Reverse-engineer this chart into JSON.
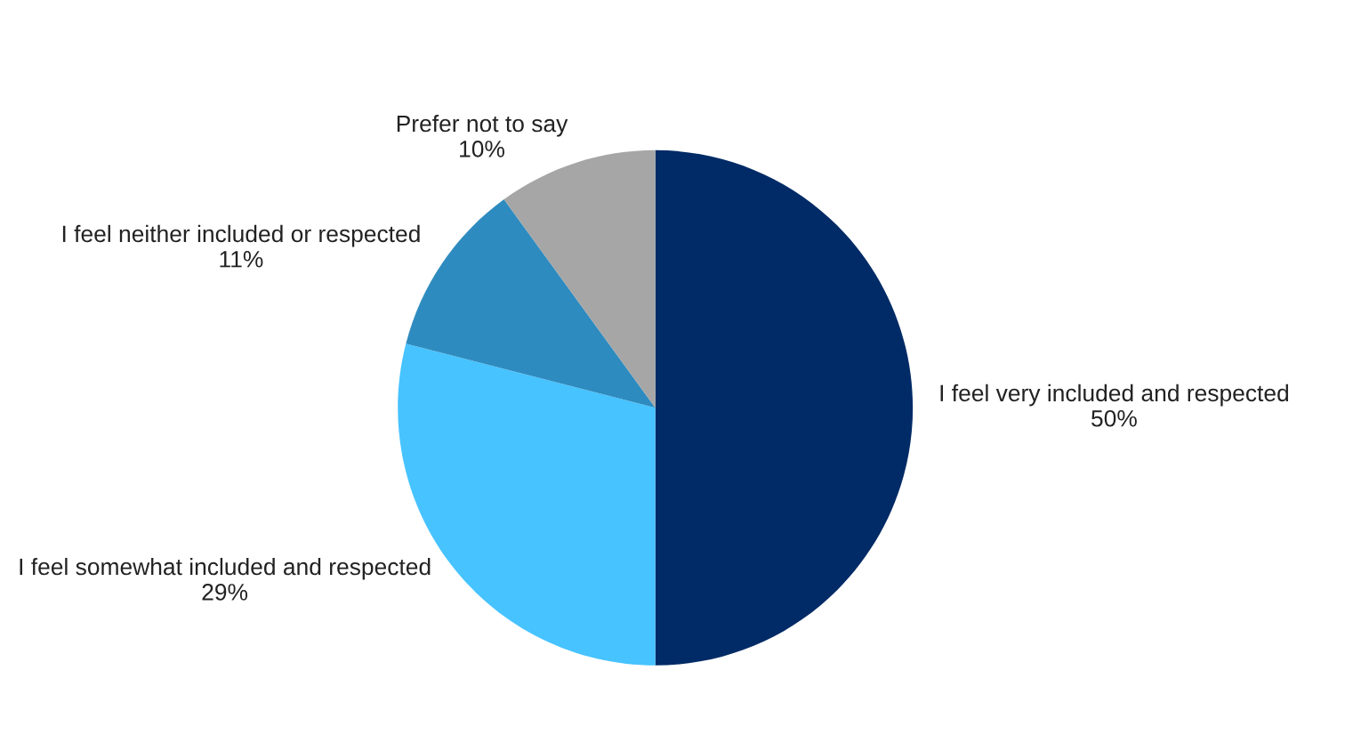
{
  "chart_data": {
    "type": "pie",
    "categories": [
      "I feel very included and respected",
      "I feel somewhat included and respected",
      "I feel neither included or respected",
      "Prefer not to say"
    ],
    "values": [
      50,
      29,
      11,
      10
    ],
    "value_labels": [
      "50%",
      "29%",
      "11%",
      "10%"
    ],
    "colors": [
      "#002b66",
      "#47c3ff",
      "#2e8bbf",
      "#a6a6a6"
    ],
    "legend": false
  }
}
